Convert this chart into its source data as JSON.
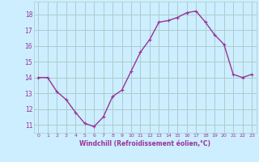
{
  "x": [
    0,
    1,
    2,
    3,
    4,
    5,
    6,
    7,
    8,
    9,
    10,
    11,
    12,
    13,
    14,
    15,
    16,
    17,
    18,
    19,
    20,
    21,
    22,
    23
  ],
  "y": [
    14.0,
    14.0,
    13.1,
    12.6,
    11.8,
    11.1,
    10.9,
    11.5,
    12.8,
    13.2,
    14.4,
    15.6,
    16.4,
    17.5,
    17.6,
    17.8,
    18.1,
    18.2,
    17.5,
    16.7,
    16.1,
    14.2,
    14.0,
    14.2
  ],
  "line_color": "#993399",
  "marker": "+",
  "marker_size": 3.5,
  "bg_color": "#cceeff",
  "grid_color": "#aacccc",
  "tick_color": "#993399",
  "label_color": "#993399",
  "xlabel": "Windchill (Refroidissement éolien,°C)",
  "xlim": [
    -0.5,
    23.5
  ],
  "ylim": [
    10.5,
    18.8
  ],
  "yticks": [
    11,
    12,
    13,
    14,
    15,
    16,
    17,
    18
  ],
  "xticks": [
    0,
    1,
    2,
    3,
    4,
    5,
    6,
    7,
    8,
    9,
    10,
    11,
    12,
    13,
    14,
    15,
    16,
    17,
    18,
    19,
    20,
    21,
    22,
    23
  ],
  "xtick_labels": [
    "0",
    "1",
    "2",
    "3",
    "4",
    "5",
    "6",
    "7",
    "8",
    "9",
    "10",
    "11",
    "12",
    "13",
    "14",
    "15",
    "16",
    "17",
    "18",
    "19",
    "20",
    "21",
    "22",
    "23"
  ],
  "line_width": 1.0
}
